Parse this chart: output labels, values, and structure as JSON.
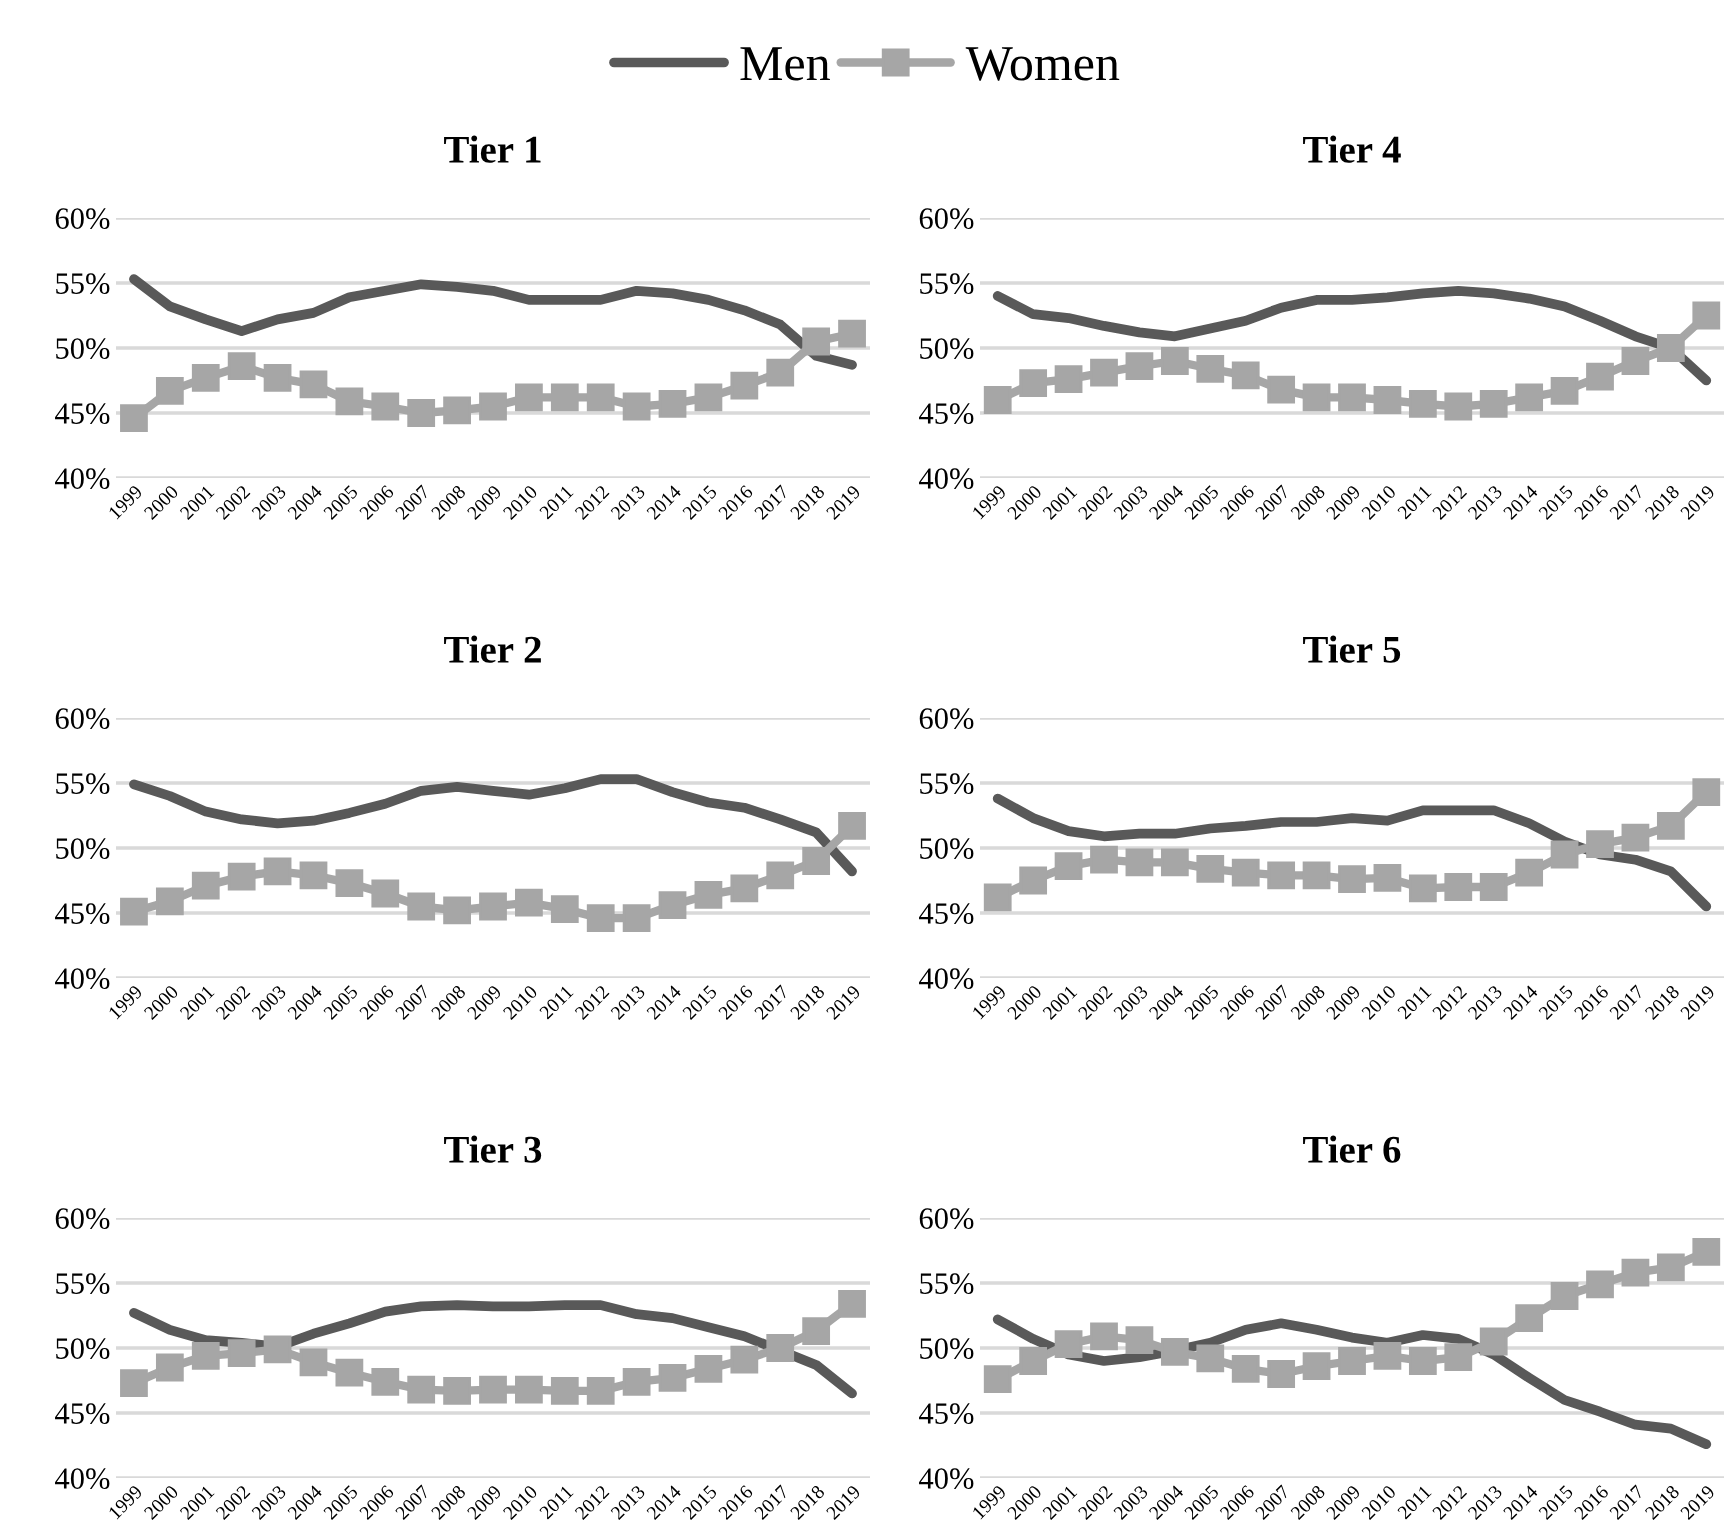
{
  "chart_data": [
    {
      "type": "line",
      "title": "Tier 1",
      "legend": "top",
      "grid": "y",
      "categories": [
        "1999",
        "2000",
        "2001",
        "2002",
        "2003",
        "2004",
        "2005",
        "2006",
        "2007",
        "2008",
        "2009",
        "2010",
        "2011",
        "2012",
        "2013",
        "2014",
        "2015",
        "2016",
        "2017",
        "2018",
        "2019"
      ],
      "ylim": [
        40,
        60
      ],
      "yticks": [
        {
          "value": 40,
          "label": "40%"
        },
        {
          "value": 45,
          "label": "45%"
        },
        {
          "value": 50,
          "label": "50%"
        },
        {
          "value": 55,
          "label": "55%"
        },
        {
          "value": 60,
          "label": "60%"
        }
      ],
      "series": [
        {
          "name": "Men",
          "color": "#595959",
          "marker": "none",
          "values": [
            55.3,
            53.2,
            52.2,
            51.3,
            52.2,
            52.7,
            53.9,
            54.4,
            54.9,
            54.7,
            54.4,
            53.7,
            53.7,
            53.7,
            54.4,
            54.2,
            53.7,
            52.9,
            51.8,
            49.4,
            48.7
          ]
        },
        {
          "name": "Women",
          "color": "#a6a6a6",
          "marker": "square",
          "values": [
            44.6,
            46.7,
            47.7,
            48.6,
            47.7,
            47.2,
            45.9,
            45.5,
            45.0,
            45.2,
            45.5,
            46.2,
            46.2,
            46.2,
            45.5,
            45.7,
            46.2,
            47.1,
            48.1,
            50.5,
            51.1
          ]
        }
      ]
    },
    {
      "type": "line",
      "title": "Tier 4",
      "grid": "y",
      "categories": [
        "1999",
        "2000",
        "2001",
        "2002",
        "2003",
        "2004",
        "2005",
        "2006",
        "2007",
        "2008",
        "2009",
        "2010",
        "2011",
        "2012",
        "2013",
        "2014",
        "2015",
        "2016",
        "2017",
        "2018",
        "2019"
      ],
      "ylim": [
        40,
        60
      ],
      "yticks": [
        {
          "value": 40,
          "label": "40%"
        },
        {
          "value": 45,
          "label": "45%"
        },
        {
          "value": 50,
          "label": "50%"
        },
        {
          "value": 55,
          "label": "55%"
        },
        {
          "value": 60,
          "label": "60%"
        }
      ],
      "series": [
        {
          "color": "#595959",
          "marker": "none",
          "values": [
            54.0,
            52.6,
            52.3,
            51.7,
            51.2,
            50.9,
            51.5,
            52.1,
            53.1,
            53.7,
            53.7,
            53.9,
            54.2,
            54.4,
            54.2,
            53.8,
            53.2,
            52.1,
            50.9,
            50.0,
            47.5
          ]
        },
        {
          "color": "#a6a6a6",
          "marker": "square",
          "values": [
            46.0,
            47.3,
            47.6,
            48.1,
            48.6,
            49.0,
            48.4,
            47.9,
            46.8,
            46.2,
            46.2,
            46.0,
            45.7,
            45.5,
            45.7,
            46.2,
            46.7,
            47.8,
            49.0,
            50.0,
            52.5
          ]
        }
      ]
    },
    {
      "type": "line",
      "title": "Tier 2",
      "grid": "y",
      "categories": [
        "1999",
        "2000",
        "2001",
        "2002",
        "2003",
        "2004",
        "2005",
        "2006",
        "2007",
        "2008",
        "2009",
        "2010",
        "2011",
        "2012",
        "2013",
        "2014",
        "2015",
        "2016",
        "2017",
        "2018",
        "2019"
      ],
      "ylim": [
        40,
        60
      ],
      "yticks": [
        {
          "value": 40,
          "label": "40%"
        },
        {
          "value": 45,
          "label": "45%"
        },
        {
          "value": 50,
          "label": "50%"
        },
        {
          "value": 55,
          "label": "55%"
        },
        {
          "value": 60,
          "label": "60%"
        }
      ],
      "series": [
        {
          "color": "#595959",
          "marker": "none",
          "values": [
            54.9,
            54.0,
            52.8,
            52.2,
            51.9,
            52.1,
            52.7,
            53.4,
            54.4,
            54.7,
            54.4,
            54.1,
            54.6,
            55.3,
            55.3,
            54.3,
            53.5,
            53.1,
            52.2,
            51.2,
            48.2
          ]
        },
        {
          "color": "#a6a6a6",
          "marker": "square",
          "values": [
            45.1,
            45.9,
            47.1,
            47.8,
            48.2,
            47.9,
            47.3,
            46.5,
            45.5,
            45.2,
            45.5,
            45.8,
            45.3,
            44.6,
            44.6,
            45.6,
            46.4,
            46.9,
            47.9,
            49.0,
            51.7
          ]
        }
      ]
    },
    {
      "type": "line",
      "title": "Tier 5",
      "grid": "y",
      "categories": [
        "1999",
        "2000",
        "2001",
        "2002",
        "2003",
        "2004",
        "2005",
        "2006",
        "2007",
        "2008",
        "2009",
        "2010",
        "2011",
        "2012",
        "2013",
        "2014",
        "2015",
        "2016",
        "2017",
        "2018",
        "2019"
      ],
      "ylim": [
        40,
        60
      ],
      "yticks": [
        {
          "value": 40,
          "label": "40%"
        },
        {
          "value": 45,
          "label": "45%"
        },
        {
          "value": 50,
          "label": "50%"
        },
        {
          "value": 55,
          "label": "55%"
        },
        {
          "value": 60,
          "label": "60%"
        }
      ],
      "series": [
        {
          "color": "#595959",
          "marker": "none",
          "values": [
            53.8,
            52.3,
            51.3,
            50.9,
            51.1,
            51.1,
            51.5,
            51.7,
            52.0,
            52.0,
            52.3,
            52.1,
            52.9,
            52.9,
            52.9,
            51.9,
            50.5,
            49.5,
            49.1,
            48.2,
            45.5
          ]
        },
        {
          "color": "#a6a6a6",
          "marker": "square",
          "values": [
            46.2,
            47.5,
            48.6,
            49.1,
            48.9,
            48.9,
            48.4,
            48.1,
            47.9,
            47.9,
            47.6,
            47.7,
            46.9,
            47.0,
            47.0,
            48.1,
            49.5,
            50.3,
            50.8,
            51.7,
            54.3
          ]
        }
      ]
    },
    {
      "type": "line",
      "title": "Tier 3",
      "grid": "y",
      "categories": [
        "1999",
        "2000",
        "2001",
        "2002",
        "2003",
        "2004",
        "2005",
        "2006",
        "2007",
        "2008",
        "2009",
        "2010",
        "2011",
        "2012",
        "2013",
        "2014",
        "2015",
        "2016",
        "2017",
        "2018",
        "2019"
      ],
      "ylim": [
        40,
        60
      ],
      "yticks": [
        {
          "value": 40,
          "label": "40%"
        },
        {
          "value": 45,
          "label": "45%"
        },
        {
          "value": 50,
          "label": "50%"
        },
        {
          "value": 55,
          "label": "55%"
        },
        {
          "value": 60,
          "label": "60%"
        }
      ],
      "series": [
        {
          "color": "#595959",
          "marker": "none",
          "values": [
            52.7,
            51.4,
            50.6,
            50.4,
            50.1,
            51.1,
            51.9,
            52.8,
            53.2,
            53.3,
            53.2,
            53.2,
            53.3,
            53.3,
            52.6,
            52.3,
            51.6,
            50.9,
            49.8,
            48.7,
            46.5
          ]
        },
        {
          "color": "#a6a6a6",
          "marker": "square",
          "values": [
            47.3,
            48.5,
            49.4,
            49.6,
            49.9,
            48.9,
            48.1,
            47.4,
            46.8,
            46.7,
            46.8,
            46.8,
            46.7,
            46.7,
            47.4,
            47.7,
            48.4,
            49.1,
            50.0,
            51.3,
            53.4
          ]
        }
      ]
    },
    {
      "type": "line",
      "title": "Tier 6",
      "grid": "y",
      "categories": [
        "1999",
        "2000",
        "2001",
        "2002",
        "2003",
        "2004",
        "2005",
        "2006",
        "2007",
        "2008",
        "2009",
        "2010",
        "2011",
        "2012",
        "2013",
        "2014",
        "2015",
        "2016",
        "2017",
        "2018",
        "2019"
      ],
      "ylim": [
        40,
        60
      ],
      "yticks": [
        {
          "value": 40,
          "label": "40%"
        },
        {
          "value": 45,
          "label": "45%"
        },
        {
          "value": 50,
          "label": "50%"
        },
        {
          "value": 55,
          "label": "55%"
        },
        {
          "value": 60,
          "label": "60%"
        }
      ],
      "series": [
        {
          "color": "#595959",
          "marker": "none",
          "values": [
            52.2,
            50.7,
            49.5,
            49.0,
            49.3,
            49.8,
            50.4,
            51.4,
            51.9,
            51.4,
            50.8,
            50.4,
            51.0,
            50.7,
            49.5,
            47.7,
            46.0,
            45.1,
            44.1,
            43.8,
            42.6
          ]
        },
        {
          "color": "#a6a6a6",
          "marker": "square",
          "values": [
            47.6,
            49.0,
            50.3,
            50.9,
            50.6,
            49.7,
            49.2,
            48.4,
            48.0,
            48.6,
            49.0,
            49.4,
            49.0,
            49.3,
            50.5,
            52.3,
            54.0,
            54.9,
            55.8,
            56.2,
            57.4
          ]
        }
      ]
    }
  ]
}
